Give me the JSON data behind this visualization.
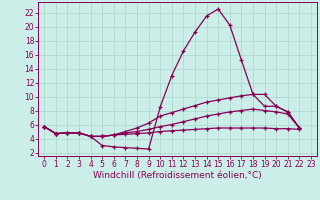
{
  "background_color": "#cceee8",
  "grid_color": "#aad4cc",
  "line_color": "#880055",
  "xlabel": "Windchill (Refroidissement éolien,°C)",
  "tick_fontsize": 5.5,
  "xlabel_fontsize": 6.5,
  "xlim": [
    -0.5,
    23.5
  ],
  "ylim": [
    1.5,
    23.5
  ],
  "xticks": [
    0,
    1,
    2,
    3,
    4,
    5,
    6,
    7,
    8,
    9,
    10,
    11,
    12,
    13,
    14,
    15,
    16,
    17,
    18,
    19,
    20,
    21,
    22,
    23
  ],
  "yticks": [
    2,
    4,
    6,
    8,
    10,
    12,
    14,
    16,
    18,
    20,
    22
  ],
  "series": [
    {
      "x": [
        0,
        1,
        2,
        3,
        4,
        5,
        6,
        7,
        8,
        9,
        10,
        11,
        12,
        13,
        14,
        15,
        16,
        17,
        18,
        19,
        20,
        21,
        22
      ],
      "y": [
        5.7,
        4.7,
        4.8,
        4.8,
        4.3,
        3.0,
        2.8,
        2.7,
        2.6,
        2.5,
        8.5,
        13.0,
        16.5,
        19.2,
        21.5,
        22.5,
        20.2,
        15.2,
        10.3,
        10.3,
        8.6,
        7.8,
        5.5
      ]
    },
    {
      "x": [
        0,
        1,
        2,
        3,
        4,
        5,
        6,
        7,
        8,
        9,
        10,
        11,
        12,
        13,
        14,
        15,
        16,
        17,
        18,
        19,
        20,
        21,
        22
      ],
      "y": [
        5.7,
        4.7,
        4.8,
        4.8,
        4.3,
        4.3,
        4.5,
        5.0,
        5.5,
        6.2,
        7.2,
        7.7,
        8.2,
        8.7,
        9.2,
        9.5,
        9.8,
        10.1,
        10.3,
        8.6,
        8.6,
        7.8,
        5.5
      ]
    },
    {
      "x": [
        0,
        1,
        2,
        3,
        4,
        5,
        6,
        7,
        8,
        9,
        10,
        11,
        12,
        13,
        14,
        15,
        16,
        17,
        18,
        19,
        20,
        21,
        22
      ],
      "y": [
        5.7,
        4.7,
        4.8,
        4.8,
        4.3,
        4.3,
        4.5,
        4.8,
        5.0,
        5.3,
        5.7,
        6.0,
        6.4,
        6.8,
        7.2,
        7.5,
        7.8,
        8.0,
        8.2,
        8.0,
        7.8,
        7.5,
        5.5
      ]
    },
    {
      "x": [
        0,
        1,
        2,
        3,
        4,
        5,
        6,
        7,
        8,
        9,
        10,
        11,
        12,
        13,
        14,
        15,
        16,
        17,
        18,
        19,
        20,
        21,
        22
      ],
      "y": [
        5.7,
        4.7,
        4.8,
        4.8,
        4.3,
        4.3,
        4.5,
        4.6,
        4.7,
        4.8,
        5.0,
        5.1,
        5.2,
        5.3,
        5.4,
        5.5,
        5.5,
        5.5,
        5.5,
        5.5,
        5.4,
        5.4,
        5.3
      ]
    }
  ]
}
